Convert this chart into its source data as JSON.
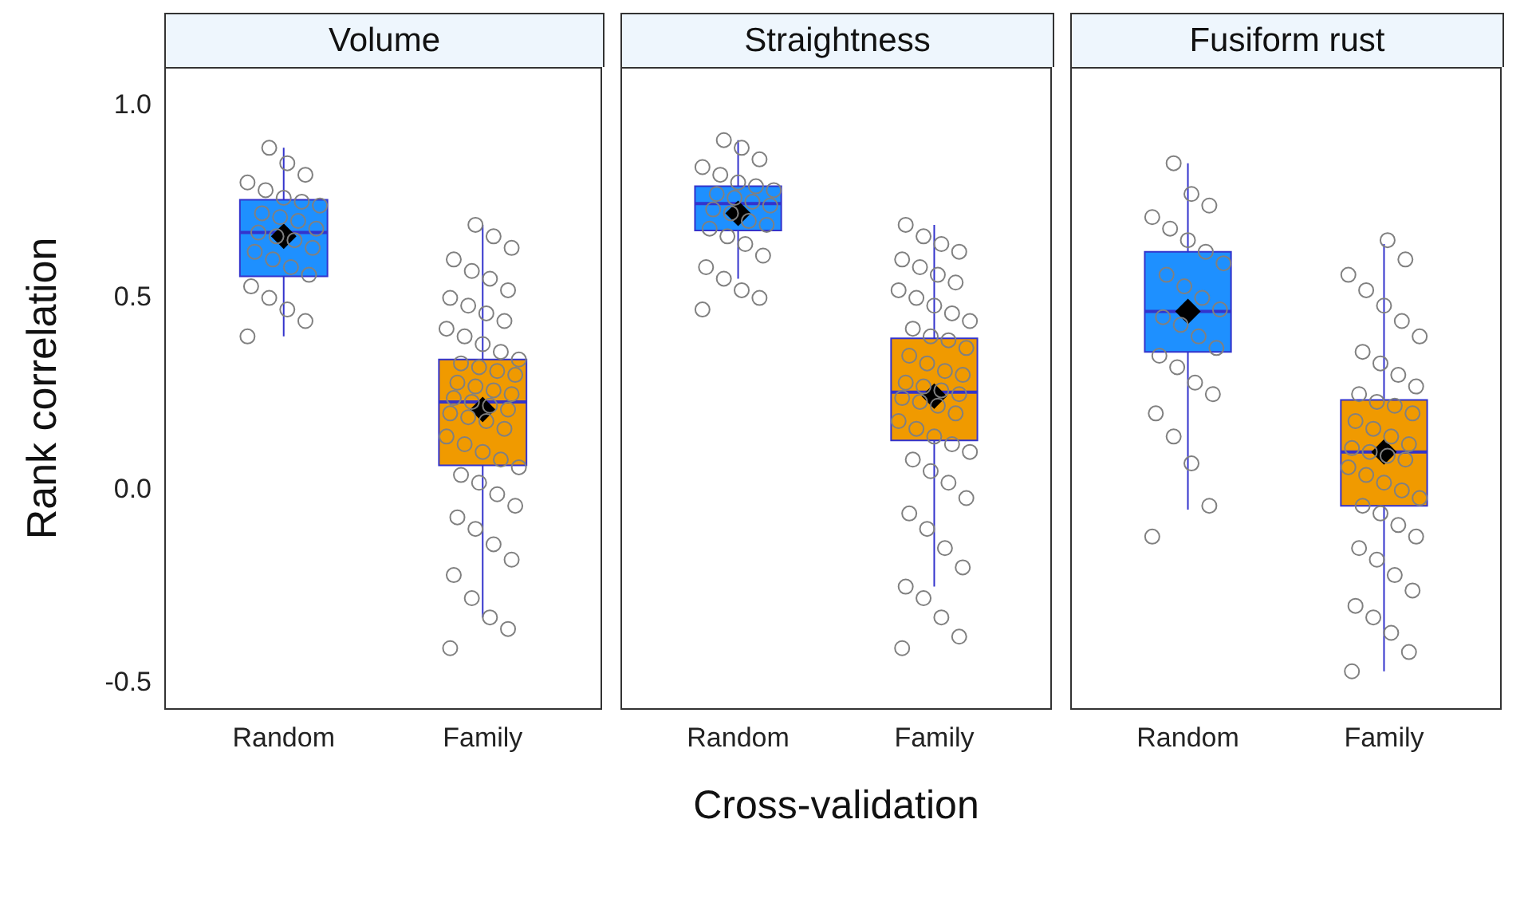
{
  "chart_data": [
    {
      "type": "box",
      "title": "Volume",
      "ylabel": "Rank correlation",
      "categories": [
        "Random",
        "Family"
      ],
      "colors": [
        "#1e90ff",
        "#f09a00"
      ],
      "ylim": [
        -0.57,
        1.1
      ],
      "yticks": [
        {
          "value": -0.5,
          "label": "-0.5"
        },
        {
          "value": 0,
          "label": "0.0"
        },
        {
          "value": 0.5,
          "label": "0.5"
        },
        {
          "value": 1,
          "label": "1.0"
        }
      ],
      "grid": false,
      "legend": false,
      "boxes": [
        {
          "low": 0.4,
          "q1": 0.556,
          "median": 0.67,
          "q3": 0.755,
          "high": 0.89,
          "mean": 0.66
        },
        {
          "low": -0.33,
          "q1": 0.065,
          "median": 0.23,
          "q3": 0.34,
          "high": 0.69,
          "mean": 0.21
        }
      ],
      "series": [
        {
          "type": "scatter",
          "color": "#808080",
          "marker": "circle",
          "x": [
            "Random",
            "Random",
            "Random",
            "Random",
            "Random",
            "Random",
            "Random",
            "Random",
            "Random",
            "Random",
            "Random",
            "Random",
            "Random",
            "Random",
            "Random",
            "Random",
            "Random",
            "Random",
            "Random",
            "Random",
            "Random",
            "Random",
            "Random",
            "Random",
            "Random",
            "Family",
            "Family",
            "Family",
            "Family",
            "Family",
            "Family",
            "Family",
            "Family",
            "Family",
            "Family",
            "Family",
            "Family",
            "Family",
            "Family",
            "Family",
            "Family",
            "Family",
            "Family",
            "Family",
            "Family",
            "Family",
            "Family",
            "Family",
            "Family",
            "Family",
            "Family",
            "Family",
            "Family",
            "Family",
            "Family",
            "Family",
            "Family",
            "Family",
            "Family",
            "Family",
            "Family",
            "Family",
            "Family",
            "Family",
            "Family",
            "Family",
            "Family",
            "Family",
            "Family",
            "Family",
            "Family",
            "Family",
            "Family",
            "Family",
            "Family"
          ],
          "values": [
            0.4,
            0.44,
            0.47,
            0.5,
            0.53,
            0.56,
            0.58,
            0.6,
            0.62,
            0.63,
            0.65,
            0.66,
            0.67,
            0.68,
            0.7,
            0.71,
            0.72,
            0.74,
            0.75,
            0.76,
            0.78,
            0.8,
            0.82,
            0.85,
            0.89,
            -0.41,
            -0.36,
            -0.33,
            -0.28,
            -0.22,
            -0.18,
            -0.14,
            -0.1,
            -0.07,
            -0.04,
            -0.01,
            0.02,
            0.04,
            0.06,
            0.08,
            0.1,
            0.12,
            0.14,
            0.16,
            0.18,
            0.19,
            0.2,
            0.21,
            0.22,
            0.23,
            0.24,
            0.25,
            0.26,
            0.27,
            0.28,
            0.3,
            0.31,
            0.32,
            0.33,
            0.34,
            0.36,
            0.38,
            0.4,
            0.42,
            0.44,
            0.46,
            0.48,
            0.5,
            0.52,
            0.55,
            0.57,
            0.6,
            0.63,
            0.66,
            0.69
          ]
        }
      ]
    },
    {
      "type": "box",
      "title": "Straightness",
      "xlabel": "Cross-validation",
      "categories": [
        "Random",
        "Family"
      ],
      "colors": [
        "#1e90ff",
        "#f09a00"
      ],
      "ylim": [
        -0.57,
        1.1
      ],
      "tick_labels": "x",
      "grid": false,
      "legend": false,
      "boxes": [
        {
          "low": 0.55,
          "q1": 0.675,
          "median": 0.745,
          "q3": 0.79,
          "high": 0.91,
          "mean": 0.72
        },
        {
          "low": -0.25,
          "q1": 0.13,
          "median": 0.255,
          "q3": 0.395,
          "high": 0.69,
          "mean": 0.245
        }
      ],
      "series": [
        {
          "type": "scatter",
          "color": "#808080",
          "marker": "circle",
          "x": [
            "Random",
            "Random",
            "Random",
            "Random",
            "Random",
            "Random",
            "Random",
            "Random",
            "Random",
            "Random",
            "Random",
            "Random",
            "Random",
            "Random",
            "Random",
            "Random",
            "Random",
            "Random",
            "Random",
            "Random",
            "Random",
            "Random",
            "Random",
            "Random",
            "Random",
            "Family",
            "Family",
            "Family",
            "Family",
            "Family",
            "Family",
            "Family",
            "Family",
            "Family",
            "Family",
            "Family",
            "Family",
            "Family",
            "Family",
            "Family",
            "Family",
            "Family",
            "Family",
            "Family",
            "Family",
            "Family",
            "Family",
            "Family",
            "Family",
            "Family",
            "Family",
            "Family",
            "Family",
            "Family",
            "Family",
            "Family",
            "Family",
            "Family",
            "Family",
            "Family",
            "Family",
            "Family",
            "Family",
            "Family",
            "Family",
            "Family",
            "Family",
            "Family",
            "Family",
            "Family",
            "Family",
            "Family"
          ],
          "values": [
            0.47,
            0.5,
            0.52,
            0.55,
            0.58,
            0.61,
            0.64,
            0.66,
            0.68,
            0.69,
            0.7,
            0.72,
            0.73,
            0.74,
            0.75,
            0.76,
            0.77,
            0.78,
            0.79,
            0.8,
            0.82,
            0.84,
            0.86,
            0.89,
            0.91,
            -0.41,
            -0.38,
            -0.33,
            -0.28,
            -0.25,
            -0.2,
            -0.15,
            -0.1,
            -0.06,
            -0.02,
            0.02,
            0.05,
            0.08,
            0.1,
            0.12,
            0.14,
            0.16,
            0.18,
            0.2,
            0.22,
            0.23,
            0.24,
            0.25,
            0.26,
            0.27,
            0.28,
            0.3,
            0.31,
            0.33,
            0.35,
            0.37,
            0.39,
            0.4,
            0.42,
            0.44,
            0.46,
            0.48,
            0.5,
            0.52,
            0.54,
            0.56,
            0.58,
            0.6,
            0.62,
            0.64,
            0.66,
            0.69
          ]
        }
      ]
    },
    {
      "type": "box",
      "title": "Fusiform rust",
      "categories": [
        "Random",
        "Family"
      ],
      "colors": [
        "#1e90ff",
        "#f09a00"
      ],
      "ylim": [
        -0.57,
        1.1
      ],
      "tick_labels": "x",
      "grid": false,
      "legend": false,
      "boxes": [
        {
          "low": -0.05,
          "q1": 0.36,
          "median": 0.465,
          "q3": 0.62,
          "high": 0.85,
          "mean": 0.465
        },
        {
          "low": -0.47,
          "q1": -0.04,
          "median": 0.1,
          "q3": 0.235,
          "high": 0.64,
          "mean": 0.1
        }
      ],
      "series": [
        {
          "type": "scatter",
          "color": "#808080",
          "marker": "circle",
          "x": [
            "Random",
            "Random",
            "Random",
            "Random",
            "Random",
            "Random",
            "Random",
            "Random",
            "Random",
            "Random",
            "Random",
            "Random",
            "Random",
            "Random",
            "Random",
            "Random",
            "Random",
            "Random",
            "Random",
            "Random",
            "Random",
            "Random",
            "Random",
            "Random",
            "Random",
            "Family",
            "Family",
            "Family",
            "Family",
            "Family",
            "Family",
            "Family",
            "Family",
            "Family",
            "Family",
            "Family",
            "Family",
            "Family",
            "Family",
            "Family",
            "Family",
            "Family",
            "Family",
            "Family",
            "Family",
            "Family",
            "Family",
            "Family",
            "Family",
            "Family",
            "Family",
            "Family",
            "Family",
            "Family",
            "Family",
            "Family",
            "Family",
            "Family",
            "Family",
            "Family",
            "Family",
            "Family",
            "Family",
            "Family",
            "Family",
            "Family"
          ],
          "values": [
            -0.12,
            -0.04,
            0.07,
            0.14,
            0.2,
            0.25,
            0.28,
            0.32,
            0.35,
            0.37,
            0.4,
            0.43,
            0.45,
            0.47,
            0.5,
            0.53,
            0.56,
            0.59,
            0.62,
            0.65,
            0.68,
            0.71,
            0.74,
            0.77,
            0.85,
            -0.47,
            -0.42,
            -0.37,
            -0.33,
            -0.3,
            -0.26,
            -0.22,
            -0.18,
            -0.15,
            -0.12,
            -0.09,
            -0.06,
            -0.04,
            -0.02,
            0.0,
            0.02,
            0.04,
            0.06,
            0.08,
            0.09,
            0.1,
            0.11,
            0.12,
            0.14,
            0.16,
            0.18,
            0.2,
            0.22,
            0.23,
            0.25,
            0.27,
            0.3,
            0.33,
            0.36,
            0.4,
            0.44,
            0.48,
            0.52,
            0.56,
            0.6,
            0.65
          ]
        }
      ]
    }
  ]
}
